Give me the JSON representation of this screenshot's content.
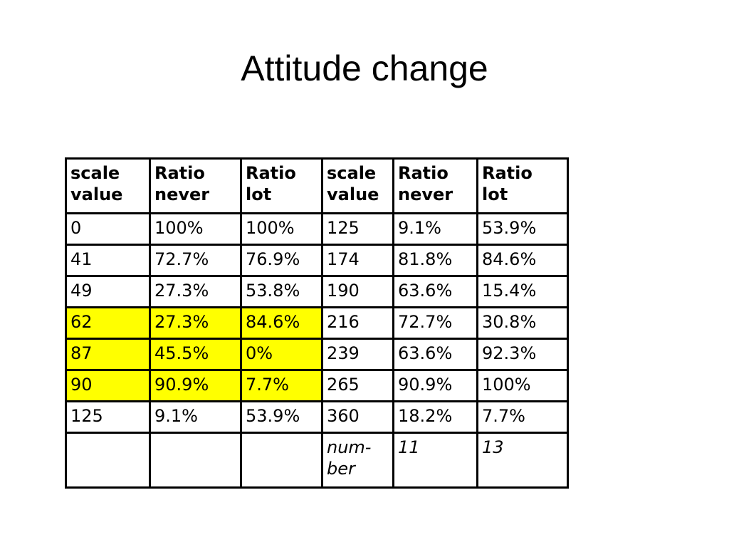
{
  "slide": {
    "title": "Attitude change"
  },
  "table": {
    "headers": [
      "scale value",
      "Ratio never",
      "Ratio lot",
      "scale value",
      "Ratio never",
      "Ratio lot"
    ],
    "highlight_color": "#ffff00",
    "rows": [
      [
        "0",
        "100%",
        "100%",
        "125",
        "9.1%",
        "53.9%"
      ],
      [
        "41",
        "72.7%",
        "76.9%",
        "174",
        "81.8%",
        "84.6%"
      ],
      [
        "49",
        "27.3%",
        "53.8%",
        "190",
        "63.6%",
        "15.4%"
      ],
      [
        "62",
        "27.3%",
        "84.6%",
        "216",
        "72.7%",
        "30.8%"
      ],
      [
        "87",
        "45.5%",
        "0%",
        "239",
        "63.6%",
        "92.3%"
      ],
      [
        "90",
        "90.9%",
        "7.7%",
        "265",
        "90.9%",
        "100%"
      ],
      [
        "125",
        "9.1%",
        "53.9%",
        "360",
        "18.2%",
        "7.7%"
      ],
      [
        "",
        "",
        "",
        "num-ber",
        "11",
        "13"
      ]
    ],
    "highlighted_rows": [
      3,
      4,
      5
    ]
  }
}
